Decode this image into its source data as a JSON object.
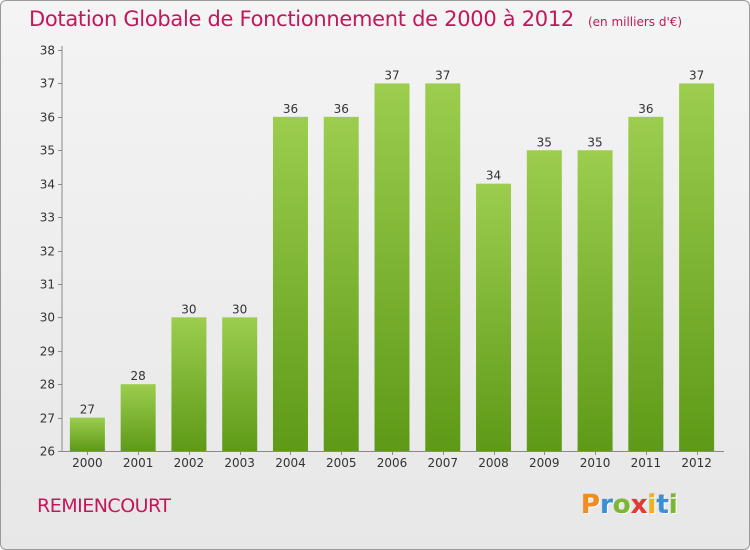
{
  "chart_data": {
    "type": "bar",
    "title": "Dotation Globale de Fonctionnement de 2000 à 2012",
    "subtitle": "(en milliers d'€)",
    "categories": [
      "2000",
      "2001",
      "2002",
      "2003",
      "2004",
      "2005",
      "2006",
      "2007",
      "2008",
      "2009",
      "2010",
      "2011",
      "2012"
    ],
    "values": [
      27,
      28,
      30,
      30,
      36,
      36,
      37,
      37,
      34,
      35,
      35,
      36,
      37
    ],
    "ylim": [
      26,
      38
    ],
    "yticks": [
      26,
      27,
      28,
      29,
      30,
      31,
      32,
      33,
      34,
      35,
      36,
      37,
      38
    ],
    "grid": false,
    "colors": {
      "bar_light": "#9ccd4e",
      "bar_dark": "#5e9a17",
      "title": "#c2185b"
    }
  },
  "footer": {
    "commune": "REMIENCOURT",
    "logo_letters": [
      "P",
      "r",
      "o",
      "x",
      "i",
      "t",
      "i"
    ],
    "logo_colors": [
      "#f28c1c",
      "#3a8fd6",
      "#7cb82f",
      "#e53935",
      "#f2b21c",
      "#3a8fd6",
      "#7cb82f"
    ]
  }
}
